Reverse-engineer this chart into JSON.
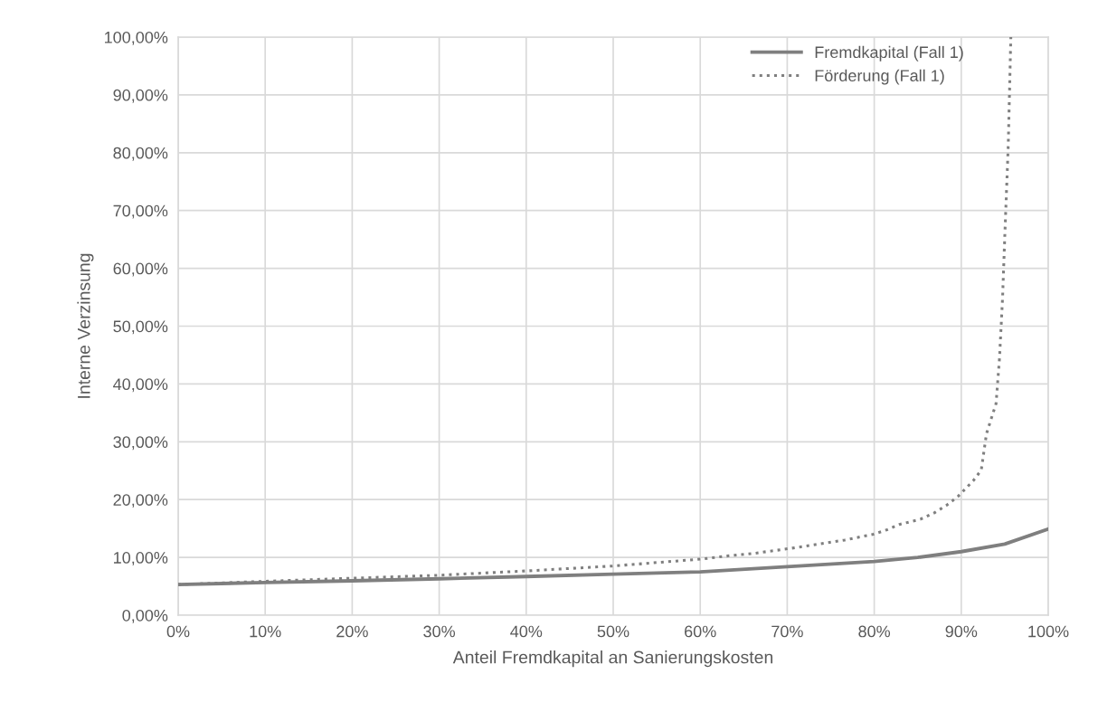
{
  "chart_data": {
    "type": "line",
    "xlabel": "Anteil Fremdkapital an Sanierungskosten",
    "ylabel": "Interne Verzinsung",
    "xlim": [
      0,
      100
    ],
    "ylim": [
      0,
      100
    ],
    "xticks": [
      {
        "value": 0,
        "label": "0%"
      },
      {
        "value": 10,
        "label": "10%"
      },
      {
        "value": 20,
        "label": "20%"
      },
      {
        "value": 30,
        "label": "30%"
      },
      {
        "value": 40,
        "label": "40%"
      },
      {
        "value": 50,
        "label": "50%"
      },
      {
        "value": 60,
        "label": "60%"
      },
      {
        "value": 70,
        "label": "70%"
      },
      {
        "value": 80,
        "label": "80%"
      },
      {
        "value": 90,
        "label": "90%"
      },
      {
        "value": 100,
        "label": "100%"
      }
    ],
    "yticks": [
      {
        "value": 0,
        "label": "0,00%"
      },
      {
        "value": 10,
        "label": "10,00%"
      },
      {
        "value": 20,
        "label": "20,00%"
      },
      {
        "value": 30,
        "label": "30,00%"
      },
      {
        "value": 40,
        "label": "40,00%"
      },
      {
        "value": 50,
        "label": "50,00%"
      },
      {
        "value": 60,
        "label": "60,00%"
      },
      {
        "value": 70,
        "label": "70,00%"
      },
      {
        "value": 80,
        "label": "80,00%"
      },
      {
        "value": 90,
        "label": "90,00%"
      },
      {
        "value": 100,
        "label": "100,00%"
      }
    ],
    "grid": true,
    "legend": "top right",
    "marker": "none",
    "series": [
      {
        "name": "Fremdkapital (Fall 1)",
        "color": "#7f7f7f",
        "line_style": "solid",
        "x": [
          0,
          10,
          20,
          30,
          40,
          50,
          60,
          70,
          80,
          85,
          90,
          95,
          100
        ],
        "values": [
          5.3,
          5.65,
          5.95,
          6.3,
          6.7,
          7.1,
          7.5,
          8.4,
          9.3,
          10.0,
          11.0,
          12.3,
          14.9
        ]
      },
      {
        "name": "Förderung (Fall 1)",
        "color": "#7f7f7f",
        "line_style": "dotted",
        "x": [
          0,
          9.7,
          20.1,
          29.8,
          39.9,
          49.9,
          55.8,
          60.1,
          62.8,
          66.2,
          70.1,
          73.2,
          76.6,
          79.9,
          81.5,
          82.9,
          85.3,
          86.9,
          88.3,
          89.6,
          91.4,
          92.3,
          92.9,
          94.0,
          94.4,
          94.75,
          95.0,
          95.4,
          95.7
        ],
        "values": [
          5.3,
          5.85,
          6.4,
          6.9,
          7.65,
          8.5,
          9.2,
          9.7,
          10.2,
          10.7,
          11.5,
          12.2,
          13.0,
          14.0,
          14.8,
          15.7,
          16.6,
          17.7,
          19.0,
          20.5,
          23.3,
          25.1,
          31.4,
          36.6,
          44.5,
          54.9,
          65.4,
          81.2,
          100
        ]
      }
    ]
  }
}
